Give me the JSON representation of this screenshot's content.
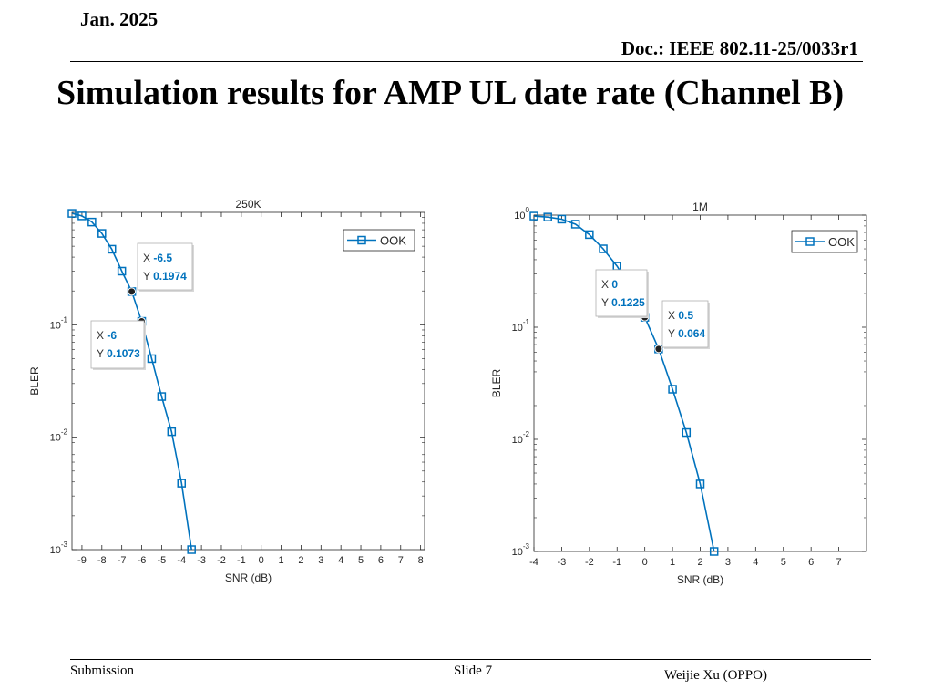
{
  "header": {
    "date": "Jan. 2025",
    "doc": "Doc.: IEEE 802.11-25/0033r1"
  },
  "slide_title": "Simulation results for AMP UL date rate (Channel B)",
  "footer": {
    "submission": "Submission",
    "slide": "Slide 7",
    "author": "Weijie Xu (OPPO)"
  },
  "colors": {
    "series": "#0072bd",
    "datatip_value": "#0072bd",
    "axis": "#262626",
    "grid": "#dcdcdc"
  },
  "chart_data": [
    {
      "type": "line",
      "title": "250K",
      "xlabel": "SNR (dB)",
      "ylabel": "BLER",
      "xlim": [
        -9.5,
        8.2
      ],
      "ylim": [
        0.001,
        1
      ],
      "yscale": "log",
      "xticks": [
        -9,
        -8,
        -7,
        -6,
        -5,
        -4,
        -3,
        -2,
        -1,
        0,
        1,
        2,
        3,
        4,
        5,
        6,
        7,
        8
      ],
      "yticks": [
        {
          "base": "10",
          "exp": "-3",
          "value": 0.001
        },
        {
          "base": "10",
          "exp": "-2",
          "value": 0.01
        },
        {
          "base": "10",
          "exp": "-1",
          "value": 0.1
        }
      ],
      "legend_position": "top-right",
      "series": [
        {
          "name": "OOK",
          "marker": "square",
          "x": [
            -9.5,
            -9,
            -8.5,
            -8,
            -7.5,
            -7,
            -6.5,
            -6,
            -5.5,
            -5,
            -4.5,
            -4,
            -3.5
          ],
          "y": [
            0.98,
            0.93,
            0.82,
            0.65,
            0.47,
            0.3,
            0.1974,
            0.1073,
            0.05,
            0.023,
            0.0112,
            0.0039,
            0.001
          ]
        }
      ],
      "datatips": [
        {
          "x_label": "X",
          "x_value": "-6.5",
          "y_label": "Y",
          "y_value": "0.1974",
          "px": -6.5,
          "py": 0.1974
        },
        {
          "x_label": "X",
          "x_value": "-6",
          "y_label": "Y",
          "y_value": "0.1073",
          "px": -6,
          "py": 0.1073
        }
      ]
    },
    {
      "type": "line",
      "title": "1M",
      "xlabel": "SNR (dB)",
      "ylabel": "BLER",
      "xlim": [
        -4,
        8
      ],
      "ylim": [
        0.001,
        1
      ],
      "yscale": "log",
      "xticks": [
        -4,
        -3,
        -2,
        -1,
        0,
        1,
        2,
        3,
        4,
        5,
        6,
        7
      ],
      "yticks": [
        {
          "base": "10",
          "exp": "-3",
          "value": 0.001
        },
        {
          "base": "10",
          "exp": "-2",
          "value": 0.01
        },
        {
          "base": "10",
          "exp": "-1",
          "value": 0.1
        },
        {
          "base": "10",
          "exp": "0",
          "value": 1
        }
      ],
      "legend_position": "top-right",
      "series": [
        {
          "name": "OOK",
          "marker": "square",
          "x": [
            -4,
            -3.5,
            -3,
            -2.5,
            -2,
            -1.5,
            -1,
            -0.5,
            0,
            0.5,
            1,
            1.5,
            2,
            2.5
          ],
          "y": [
            0.98,
            0.96,
            0.92,
            0.83,
            0.67,
            0.5,
            0.35,
            0.22,
            0.1225,
            0.064,
            0.028,
            0.0115,
            0.004,
            0.001
          ]
        }
      ],
      "datatips": [
        {
          "x_label": "X",
          "x_value": "0",
          "y_label": "Y",
          "y_value": "0.1225",
          "px": 0,
          "py": 0.1225
        },
        {
          "x_label": "X",
          "x_value": "0.5",
          "y_label": "Y",
          "y_value": "0.064",
          "px": 0.5,
          "py": 0.064
        }
      ]
    }
  ]
}
